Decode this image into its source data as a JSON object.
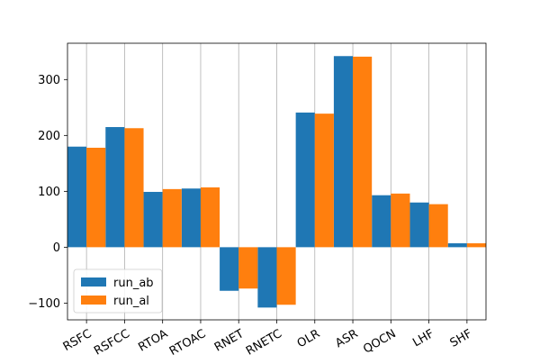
{
  "chart_data": {
    "type": "bar",
    "categories": [
      "RSFC",
      "RSFCC",
      "RTOA",
      "RTOAC",
      "RNET",
      "RNETC",
      "OLR",
      "ASR",
      "QOCN",
      "LHF",
      "SHF"
    ],
    "series": [
      {
        "name": "run_ab",
        "color": "#1f77b4",
        "values": [
          180,
          215,
          99,
          105,
          -78,
          -108,
          241,
          342,
          93,
          80,
          7
        ]
      },
      {
        "name": "run_al",
        "color": "#ff7f0e",
        "values": [
          178,
          213,
          104,
          107,
          -74,
          -103,
          239,
          341,
          96,
          77,
          7
        ]
      }
    ],
    "ylim": [
      -130,
      365
    ],
    "yticks": [
      -100,
      0,
      100,
      200,
      300
    ],
    "title": "",
    "xlabel": "",
    "ylabel": "",
    "grid": "x-axis vertical lines",
    "legend_position": "lower-left",
    "xtick_rotation_deg": -30
  }
}
